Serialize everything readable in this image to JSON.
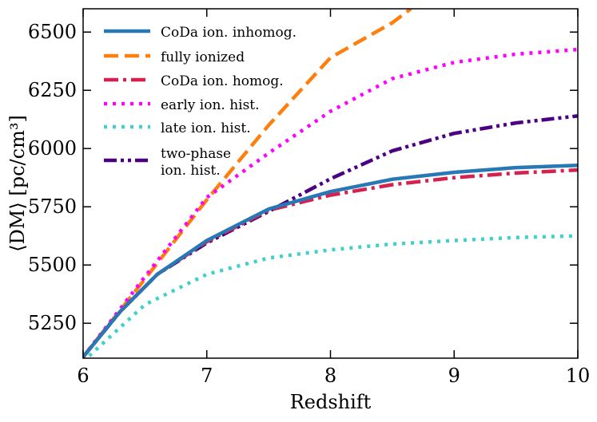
{
  "chart_data": {
    "type": "line",
    "xlabel": "Redshift",
    "ylabel": "⟨DM⟩ [pc/cm³]",
    "xlim": [
      6,
      10
    ],
    "ylim": [
      5100,
      6600
    ],
    "xticks": [
      6,
      7,
      8,
      9,
      10
    ],
    "yticks": [
      5250,
      5500,
      5750,
      6000,
      6250,
      6500
    ],
    "xtick_labels": [
      "6",
      "7",
      "8",
      "9",
      "10"
    ],
    "ytick_labels": [
      "5250",
      "5500",
      "5750",
      "6000",
      "6250",
      "6500"
    ],
    "grid": false,
    "legend_position": "top-left",
    "series": [
      {
        "name": "CoDa ion. inhomog.",
        "color": "#2878b5",
        "style": "solid",
        "x": [
          6.0,
          6.3,
          6.6,
          7.0,
          7.5,
          8.0,
          8.5,
          9.0,
          9.5,
          10.0
        ],
        "y": [
          5105,
          5300,
          5460,
          5605,
          5740,
          5815,
          5868,
          5898,
          5918,
          5928
        ]
      },
      {
        "name": "fully ionized",
        "color": "#ff7f0e",
        "style": "dashed",
        "x": [
          6.0,
          6.5,
          7.0,
          7.5,
          8.0,
          8.5,
          8.65
        ],
        "y": [
          5105,
          5440,
          5780,
          6100,
          6390,
          6540,
          6600
        ]
      },
      {
        "name": "CoDa ion. homog.",
        "color": "#d6204e",
        "style": "dashdot",
        "x": [
          6.0,
          6.3,
          6.6,
          7.0,
          7.5,
          8.0,
          8.5,
          9.0,
          9.5,
          10.0
        ],
        "y": [
          5105,
          5300,
          5460,
          5600,
          5735,
          5800,
          5845,
          5875,
          5895,
          5908
        ]
      },
      {
        "name": "early ion. hist.",
        "color": "#ff00ff",
        "style": "dotted",
        "x": [
          6.0,
          6.5,
          7.0,
          7.5,
          8.0,
          8.5,
          9.0,
          9.5,
          10.0
        ],
        "y": [
          5105,
          5450,
          5790,
          5980,
          6160,
          6300,
          6370,
          6405,
          6425
        ]
      },
      {
        "name": "late ion. hist.",
        "color": "#40d0c8",
        "style": "dotted",
        "x": [
          6.05,
          6.5,
          7.0,
          7.5,
          8.0,
          8.5,
          9.0,
          9.5,
          10.0
        ],
        "y": [
          5110,
          5330,
          5460,
          5530,
          5565,
          5590,
          5605,
          5618,
          5625
        ]
      },
      {
        "name": "two-phase ion. hist.",
        "color": "#4b0082",
        "style": "dashdotdot",
        "x": [
          6.0,
          6.3,
          6.6,
          7.0,
          7.5,
          8.0,
          8.5,
          9.0,
          9.5,
          10.0
        ],
        "y": [
          5105,
          5300,
          5460,
          5595,
          5730,
          5870,
          5990,
          6065,
          6110,
          6140
        ]
      }
    ]
  }
}
